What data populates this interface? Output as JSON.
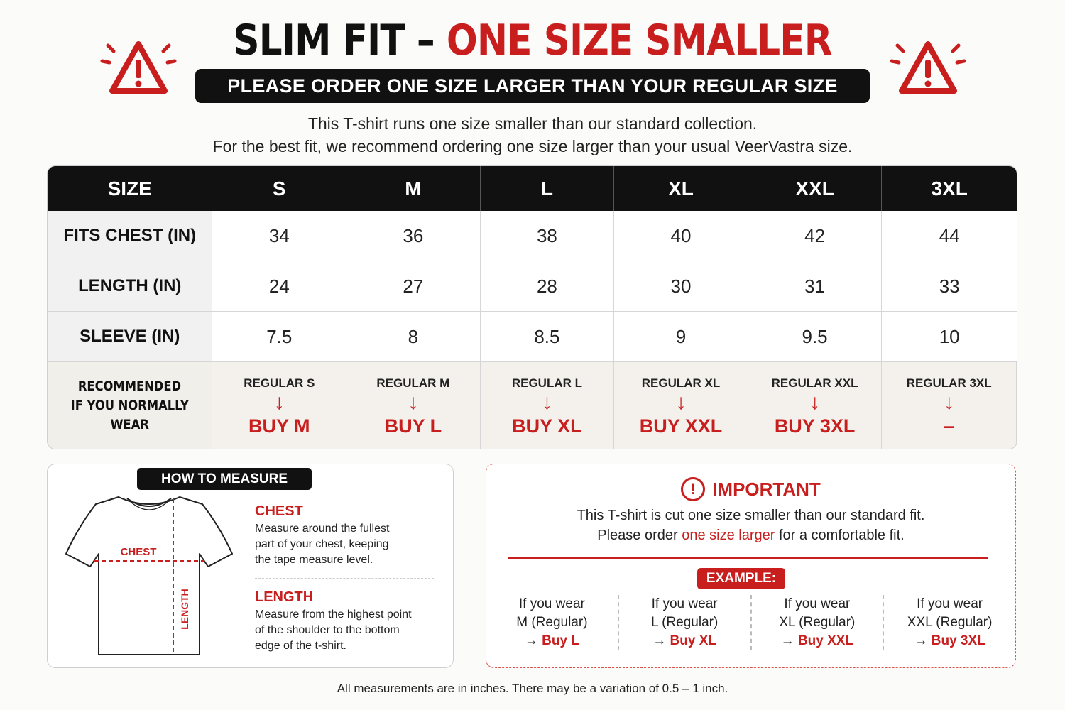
{
  "title": {
    "part1": "SLIM FIT – ",
    "part2": "ONE SIZE SMALLER"
  },
  "banner": "PLEASE ORDER ONE SIZE LARGER THAN YOUR REGULAR SIZE",
  "intro": {
    "line1": "This T-shirt runs one size smaller than our standard collection.",
    "line2": "For the best fit, we recommend ordering one size larger than your usual VeerVastra size."
  },
  "table": {
    "header": [
      "SIZE",
      "S",
      "M",
      "L",
      "XL",
      "XXL",
      "3XL"
    ],
    "rows": [
      {
        "label": "FITS CHEST (IN)",
        "values": [
          "34",
          "36",
          "38",
          "40",
          "42",
          "44"
        ]
      },
      {
        "label": "LENGTH (IN)",
        "values": [
          "24",
          "27",
          "28",
          "30",
          "31",
          "33"
        ]
      },
      {
        "label": "SLEEVE (IN)",
        "values": [
          "7.5",
          "8",
          "8.5",
          "9",
          "9.5",
          "10"
        ]
      }
    ],
    "recommended": {
      "label_line1": "RECOMMENDED",
      "label_line2": "IF YOU NORMALLY WEAR",
      "arrow": "↓",
      "items": [
        {
          "regular": "REGULAR S",
          "buy": "BUY M"
        },
        {
          "regular": "REGULAR M",
          "buy": "BUY L"
        },
        {
          "regular": "REGULAR L",
          "buy": "BUY XL"
        },
        {
          "regular": "REGULAR XL",
          "buy": "BUY XXL"
        },
        {
          "regular": "REGULAR XXL",
          "buy": "BUY 3XL"
        },
        {
          "regular": "REGULAR 3XL",
          "buy": "–"
        }
      ]
    }
  },
  "measure": {
    "tag": "HOW TO MEASURE",
    "diagram_chest": "CHEST",
    "diagram_length": "LENGTH",
    "chest_head": "CHEST",
    "chest_text": [
      "Measure around the fullest",
      "part of your chest, keeping",
      "the tape measure level."
    ],
    "length_head": "LENGTH",
    "length_text": [
      "Measure from the highest point",
      "of the shoulder to the bottom",
      "edge of the t-shirt."
    ]
  },
  "important": {
    "icon": "!",
    "title": "IMPORTANT",
    "line1": "This T-shirt is cut one size smaller than our standard fit.",
    "line2_pre": "Please order ",
    "line2_hl": "one size larger",
    "line2_post": " for a comfortable fit.",
    "example_tag": "EXAMPLE:",
    "examples": [
      {
        "l1": "If you wear",
        "l2": "M (Regular)",
        "arrow": "→",
        "buy": "Buy L"
      },
      {
        "l1": "If you wear",
        "l2": "L (Regular)",
        "arrow": "→",
        "buy": "Buy XL"
      },
      {
        "l1": "If you wear",
        "l2": "XL (Regular)",
        "arrow": "→",
        "buy": "Buy XXL"
      },
      {
        "l1": "If you wear",
        "l2": "XXL (Regular)",
        "arrow": "→",
        "buy": "Buy 3XL"
      }
    ]
  },
  "footer": "All measurements are in inches. There may be a variation of 0.5 – 1 inch.",
  "colors": {
    "accent": "#c81e1e",
    "dark": "#111111"
  },
  "icons": {
    "warning": "warning-triangle-icon",
    "alert": "alert-circle-icon",
    "tshirt": "tshirt-diagram"
  }
}
